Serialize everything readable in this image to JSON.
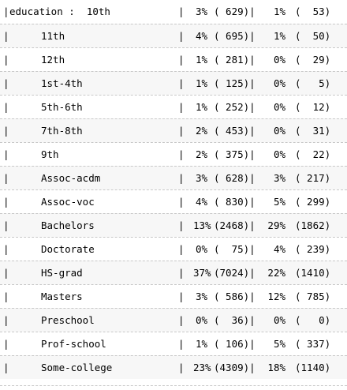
{
  "variable_prefix": "education :",
  "rows": [
    {
      "label": "10th",
      "pct1": "3%",
      "count1": "( 629)|",
      "pct2": "1%",
      "count2": "(  53)"
    },
    {
      "label": "11th",
      "pct1": "4%",
      "count1": "( 695)|",
      "pct2": "1%",
      "count2": "(  50)"
    },
    {
      "label": "12th",
      "pct1": "1%",
      "count1": "( 281)|",
      "pct2": "0%",
      "count2": "(  29)"
    },
    {
      "label": "1st-4th",
      "pct1": "1%",
      "count1": "( 125)|",
      "pct2": "0%",
      "count2": "(   5)"
    },
    {
      "label": "5th-6th",
      "pct1": "1%",
      "count1": "( 252)|",
      "pct2": "0%",
      "count2": "(  12)"
    },
    {
      "label": "7th-8th",
      "pct1": "2%",
      "count1": "( 453)|",
      "pct2": "0%",
      "count2": "(  31)"
    },
    {
      "label": "9th",
      "pct1": "2%",
      "count1": "( 375)|",
      "pct2": "0%",
      "count2": "(  22)"
    },
    {
      "label": "Assoc-acdm",
      "pct1": "3%",
      "count1": "( 628)|",
      "pct2": "3%",
      "count2": "( 217)"
    },
    {
      "label": "Assoc-voc",
      "pct1": "4%",
      "count1": "( 830)|",
      "pct2": "5%",
      "count2": "( 299)"
    },
    {
      "label": "Bachelors",
      "pct1": "13%",
      "count1": "(2468)|",
      "pct2": "29%",
      "count2": "(1862)"
    },
    {
      "label": "Doctorate",
      "pct1": "0%",
      "count1": "(  75)|",
      "pct2": "4%",
      "count2": "( 239)"
    },
    {
      "label": "HS-grad",
      "pct1": "37%",
      "count1": "(7024)|",
      "pct2": "22%",
      "count2": "(1410)"
    },
    {
      "label": "Masters",
      "pct1": "3%",
      "count1": "( 586)|",
      "pct2": "12%",
      "count2": "( 785)"
    },
    {
      "label": "Preschool",
      "pct1": "0%",
      "count1": "(  36)|",
      "pct2": "0%",
      "count2": "(   0)"
    },
    {
      "label": "Prof-school",
      "pct1": "1%",
      "count1": "( 106)|",
      "pct2": "5%",
      "count2": "( 337)"
    },
    {
      "label": "Some-college",
      "pct1": "23%",
      "count1": "(4309)|",
      "pct2": "18%",
      "count2": "(1140)"
    }
  ],
  "separator": "|"
}
